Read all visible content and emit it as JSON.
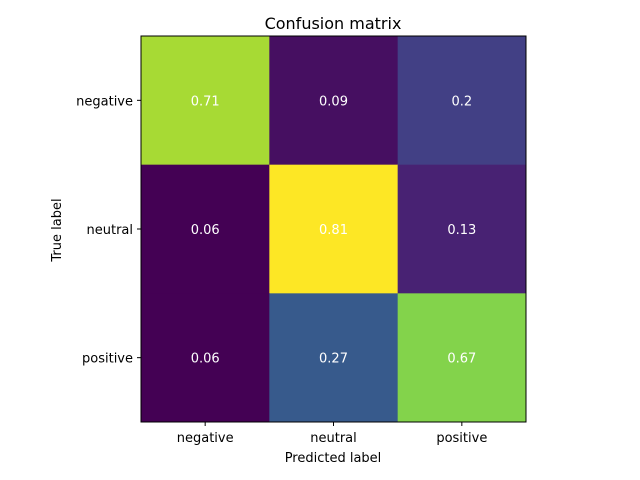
{
  "chart_data": {
    "type": "heatmap",
    "title": "Confusion matrix",
    "xlabel": "Predicted label",
    "ylabel": "True label",
    "x_categories": [
      "negative",
      "neutral",
      "positive"
    ],
    "y_categories": [
      "negative",
      "neutral",
      "positive"
    ],
    "values": [
      [
        0.71,
        0.09,
        0.2
      ],
      [
        0.06,
        0.81,
        0.13
      ],
      [
        0.06,
        0.27,
        0.67
      ]
    ],
    "value_labels": [
      [
        "0.71",
        "0.09",
        "0.2"
      ],
      [
        "0.06",
        "0.81",
        "0.13"
      ],
      [
        "0.06",
        "0.27",
        "0.67"
      ]
    ],
    "colormap": "viridis",
    "grid": false,
    "colors": {
      "text_on_cell": "#ffffff",
      "axis": "#000000",
      "background": "#ffffff"
    }
  }
}
